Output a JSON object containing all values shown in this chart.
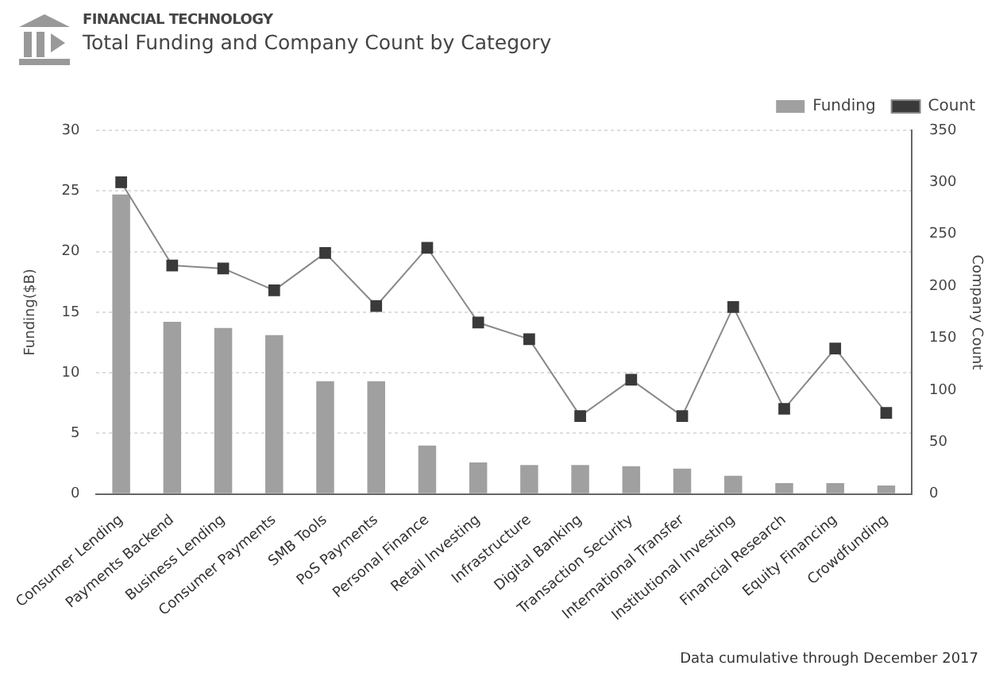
{
  "chart_data": {
    "type": "bar",
    "subtitle": "FINANCIAL TECHNOLOGY",
    "title": "Total Funding and Company Count by Category",
    "ylabel": "Funding($B)",
    "y2label": "Company Count",
    "categories": [
      "Consumer Lending",
      "Payments Backend",
      "Business Lending",
      "Consumer Payments",
      "SMB Tools",
      "PoS Payments",
      "Personal Finance",
      "Retail Investing",
      "Infrastructure",
      "Digital Banking",
      "Transaction Security",
      "International Transfer",
      "Institutional Investing",
      "Financial Research",
      "Equity Financing",
      "Crowdfunding"
    ],
    "series": [
      {
        "name": "Funding",
        "color": "#a0a0a0",
        "values": [
          24.7,
          14.2,
          13.7,
          13.1,
          9.3,
          9.3,
          4.0,
          2.6,
          2.4,
          2.4,
          2.3,
          2.1,
          1.5,
          0.9,
          0.9,
          0.7
        ]
      },
      {
        "name": "Count",
        "type": "line",
        "axis": "y2",
        "color": "#3a3a3a",
        "marker": "square",
        "line_style": "solid",
        "values": [
          300,
          220,
          217,
          196,
          232,
          181,
          237,
          165,
          149,
          75,
          110,
          75,
          180,
          82,
          140,
          78
        ]
      }
    ],
    "ylim": [
      0,
      30
    ],
    "yticks": [
      0,
      5,
      10,
      15,
      20,
      25,
      30
    ],
    "y2lim": [
      0,
      350
    ],
    "y2ticks": [
      0,
      50,
      100,
      150,
      200,
      250,
      300,
      350
    ],
    "grid": "y",
    "legend": "top right",
    "annotations": [
      "Data cumulative through December 2017"
    ]
  }
}
